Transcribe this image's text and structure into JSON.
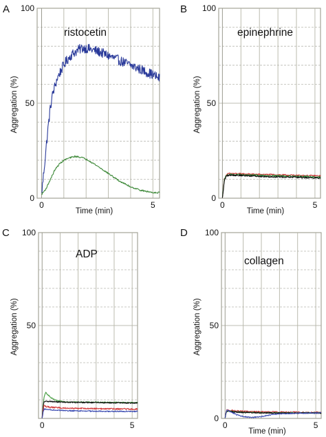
{
  "figure": {
    "panels": [
      "A",
      "B",
      "C",
      "D"
    ]
  },
  "chart_data": [
    {
      "panel": "A",
      "type": "line",
      "title": "ristocetin",
      "xlabel": "Time (min)",
      "ylabel": "Aggregation (%)",
      "xticks": [
        "0",
        "5"
      ],
      "yticks": [
        "0",
        "50",
        "100"
      ],
      "xlim": [
        -0.2,
        5.3
      ],
      "ylim": [
        0,
        100
      ],
      "grid": true,
      "series": [
        {
          "color": "#2a3a9a",
          "noise": 2.6,
          "x": [
            0,
            0.1,
            0.2,
            0.3,
            0.4,
            0.5,
            0.7,
            0.9,
            1.1,
            1.3,
            1.5,
            1.8,
            2.0,
            2.3,
            2.6,
            3.0,
            3.4,
            3.8,
            4.2,
            4.6,
            5.0,
            5.3
          ],
          "y": [
            2,
            14,
            26,
            38,
            48,
            55,
            63,
            68,
            72,
            75,
            77,
            79,
            79,
            78,
            77,
            75,
            73,
            71,
            69,
            67,
            65,
            63
          ]
        },
        {
          "color": "#3f8a3a",
          "noise": 0.4,
          "x": [
            0,
            0.2,
            0.4,
            0.6,
            0.8,
            1.0,
            1.2,
            1.5,
            1.8,
            2.1,
            2.5,
            3.0,
            3.5,
            4.0,
            4.5,
            5.0,
            5.3
          ],
          "y": [
            2,
            5,
            10,
            15,
            18,
            20,
            21,
            22,
            21.5,
            20,
            17,
            13,
            9,
            6,
            4,
            3,
            3
          ]
        }
      ]
    },
    {
      "panel": "B",
      "type": "line",
      "title": "epinephrine",
      "xlabel": "Time (min)",
      "ylabel": "Aggregation (%)",
      "xticks": [
        "0",
        "5"
      ],
      "yticks": [
        "0",
        "50",
        "100"
      ],
      "xlim": [
        -0.2,
        5.3
      ],
      "ylim": [
        0,
        100
      ],
      "grid": true,
      "series": [
        {
          "color": "#c83a3a",
          "noise": 0.4,
          "x": [
            0,
            0.05,
            0.1,
            0.2,
            0.3,
            0.4,
            1,
            2,
            3,
            4,
            5,
            5.3
          ],
          "y": [
            0,
            5,
            10,
            12,
            12.8,
            13,
            12.8,
            12.5,
            12.3,
            12,
            11.8,
            11.7
          ]
        },
        {
          "color": "#2a8a3a",
          "noise": 0.4,
          "x": [
            0,
            0.05,
            0.1,
            0.2,
            0.3,
            0.4,
            1,
            2,
            3,
            4,
            5,
            5.3
          ],
          "y": [
            0,
            5,
            10,
            11.8,
            12.3,
            12.5,
            12.3,
            12,
            11.8,
            11.5,
            11.2,
            11
          ]
        },
        {
          "color": "#111111",
          "noise": 0.4,
          "x": [
            0,
            0.05,
            0.1,
            0.2,
            0.3,
            0.4,
            1,
            2,
            3,
            4,
            5,
            5.3
          ],
          "y": [
            0,
            4,
            9,
            11.5,
            12,
            12.2,
            12,
            11.5,
            11.2,
            11,
            10.7,
            10.5
          ]
        }
      ]
    },
    {
      "panel": "C",
      "type": "line",
      "title": "ADP",
      "xlabel": "",
      "ylabel": "Aggregation (%)",
      "xticks": [
        "0",
        "5"
      ],
      "yticks": [
        "50",
        "100"
      ],
      "xlim": [
        -0.2,
        5.3
      ],
      "ylim": [
        0,
        100
      ],
      "grid": true,
      "series": [
        {
          "color": "#3f9a3a",
          "noise": 0.3,
          "x": [
            0,
            0.05,
            0.1,
            0.2,
            0.3,
            0.5,
            0.8,
            1.2,
            2,
            3,
            4,
            5,
            5.3
          ],
          "y": [
            0,
            6,
            11,
            14,
            13,
            11,
            9.5,
            9,
            8.8,
            8.7,
            8.6,
            8.5,
            8.5
          ]
        },
        {
          "color": "#111111",
          "noise": 0.3,
          "x": [
            0,
            0.05,
            0.1,
            0.3,
            0.6,
            1,
            2,
            3,
            4,
            5,
            5.3
          ],
          "y": [
            0,
            5,
            9,
            9.2,
            9,
            8.8,
            8.6,
            8.5,
            8.4,
            8.3,
            8.3
          ]
        },
        {
          "color": "#d03a3a",
          "noise": 0.4,
          "x": [
            0,
            0.05,
            0.1,
            0.2,
            0.4,
            0.8,
            1.5,
            2.5,
            3.5,
            4.5,
            5.3
          ],
          "y": [
            0,
            4,
            7,
            6.5,
            6,
            5.8,
            5.5,
            5.3,
            5.2,
            5.1,
            5
          ]
        },
        {
          "color": "#3a4ab0",
          "noise": 0.3,
          "x": [
            0,
            0.05,
            0.1,
            0.3,
            0.6,
            1,
            2,
            3,
            4,
            5,
            5.3
          ],
          "y": [
            0,
            3,
            5,
            4.8,
            4.5,
            4.3,
            4,
            3.9,
            3.8,
            3.8,
            3.8
          ]
        }
      ]
    },
    {
      "panel": "D",
      "type": "line",
      "title": "collagen",
      "xlabel": "Time (min)",
      "ylabel": "Aggregation (%)",
      "xticks": [
        "0",
        "5"
      ],
      "yticks": [
        "0",
        "50",
        "100"
      ],
      "xlim": [
        -0.2,
        5.3
      ],
      "ylim": [
        0,
        100
      ],
      "grid": true,
      "series": [
        {
          "color": "#c83a3a",
          "noise": 0.4,
          "x": [
            0,
            0.05,
            0.1,
            0.3,
            0.6,
            1,
            1.5,
            2,
            3,
            4,
            5,
            5.3
          ],
          "y": [
            0,
            3,
            4.5,
            4.3,
            4,
            3.8,
            3.6,
            3.5,
            3.4,
            3.3,
            3.2,
            3.2
          ]
        },
        {
          "color": "#2a8a3a",
          "noise": 0.3,
          "x": [
            0,
            0.05,
            0.1,
            0.3,
            0.6,
            1,
            1.5,
            2,
            3,
            4,
            5,
            5.3
          ],
          "y": [
            0,
            3,
            4,
            3.8,
            3.5,
            3.3,
            3.2,
            3.1,
            3,
            3,
            3,
            3
          ]
        },
        {
          "color": "#111111",
          "noise": 0.3,
          "x": [
            0,
            0.05,
            0.1,
            0.3,
            0.6,
            1,
            1.5,
            2,
            3,
            4,
            5,
            5.3
          ],
          "y": [
            0,
            3,
            4,
            3.7,
            3.4,
            3.2,
            3.1,
            3,
            2.9,
            2.9,
            2.9,
            2.9
          ]
        },
        {
          "color": "#3a4ab0",
          "noise": 0.3,
          "x": [
            0,
            0.05,
            0.1,
            0.3,
            0.6,
            1,
            1.5,
            2,
            2.5,
            3,
            4,
            5,
            5.3
          ],
          "y": [
            0,
            3,
            4.5,
            3.5,
            2.2,
            1,
            0.5,
            1,
            2,
            2.5,
            2.8,
            3,
            3
          ]
        }
      ]
    }
  ]
}
